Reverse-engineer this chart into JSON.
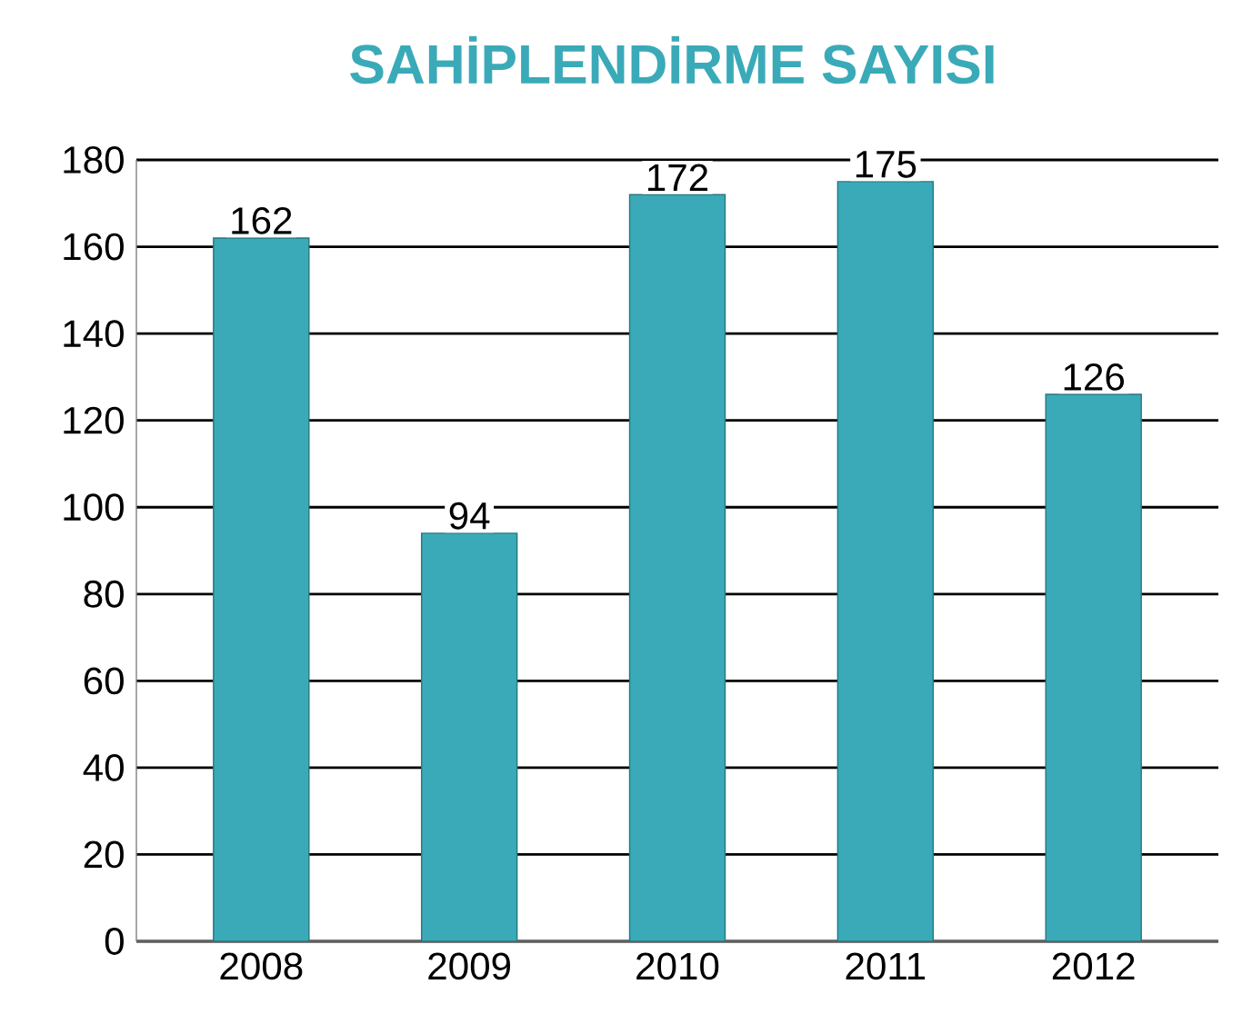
{
  "chart_data": {
    "type": "bar",
    "title": "SAHİPLENDİRME SAYISI",
    "categories": [
      "2008",
      "2009",
      "2010",
      "2011",
      "2012"
    ],
    "values": [
      162,
      94,
      172,
      175,
      126
    ],
    "color": "#3aaab8",
    "ylim": [
      0,
      180
    ],
    "yticks": [
      0,
      20,
      40,
      60,
      80,
      100,
      120,
      140,
      160,
      180
    ],
    "grid": "y",
    "data_labels": true
  }
}
